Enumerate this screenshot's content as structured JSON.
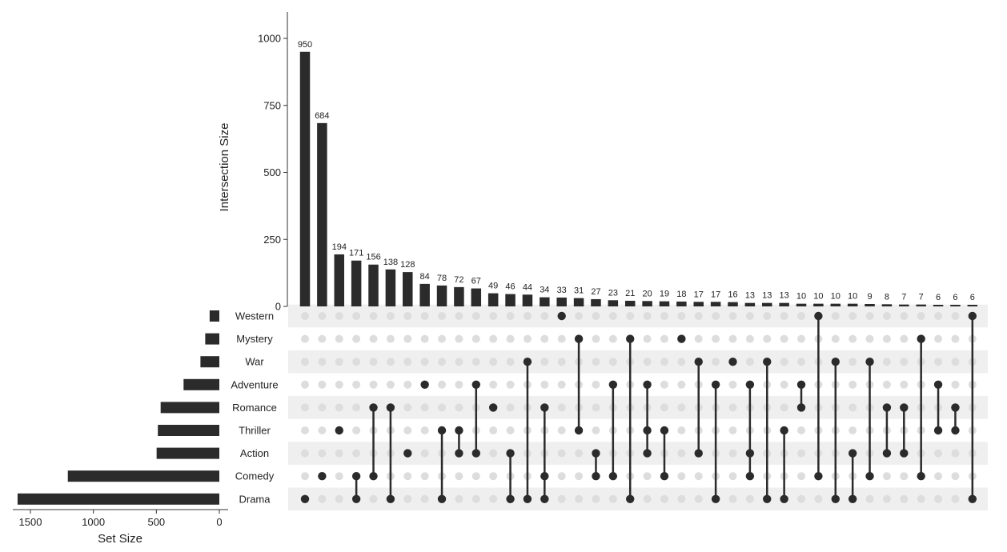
{
  "chart_data": {
    "type": "upset",
    "sets": [
      "Western",
      "Mystery",
      "War",
      "Adventure",
      "Romance",
      "Thriller",
      "Action",
      "Comedy",
      "Drama"
    ],
    "set_sizes": [
      77,
      112,
      150,
      284,
      466,
      488,
      498,
      1203,
      1602
    ],
    "set_size_axis": {
      "label": "Set Size",
      "ticks": [
        1500,
        1000,
        500,
        0
      ],
      "max": 1650,
      "reversed": true
    },
    "intersection_axis": {
      "label": "Intersection Size",
      "ticks": [
        0,
        250,
        500,
        750,
        1000
      ],
      "max": 1100
    },
    "intersections": [
      {
        "size": 950,
        "sets": [
          "Drama"
        ]
      },
      {
        "size": 684,
        "sets": [
          "Comedy"
        ]
      },
      {
        "size": 194,
        "sets": [
          "Thriller"
        ]
      },
      {
        "size": 171,
        "sets": [
          "Comedy",
          "Drama"
        ]
      },
      {
        "size": 156,
        "sets": [
          "Romance",
          "Comedy"
        ]
      },
      {
        "size": 138,
        "sets": [
          "Romance",
          "Drama"
        ]
      },
      {
        "size": 128,
        "sets": [
          "Action"
        ]
      },
      {
        "size": 84,
        "sets": [
          "Adventure"
        ]
      },
      {
        "size": 78,
        "sets": [
          "Thriller",
          "Drama"
        ]
      },
      {
        "size": 72,
        "sets": [
          "Thriller",
          "Action"
        ]
      },
      {
        "size": 67,
        "sets": [
          "Adventure",
          "Action"
        ]
      },
      {
        "size": 49,
        "sets": [
          "Romance"
        ]
      },
      {
        "size": 46,
        "sets": [
          "Action",
          "Drama"
        ]
      },
      {
        "size": 44,
        "sets": [
          "War",
          "Drama"
        ]
      },
      {
        "size": 34,
        "sets": [
          "Romance",
          "Comedy",
          "Drama"
        ]
      },
      {
        "size": 33,
        "sets": [
          "Western"
        ]
      },
      {
        "size": 31,
        "sets": [
          "Mystery",
          "Thriller"
        ]
      },
      {
        "size": 27,
        "sets": [
          "Action",
          "Comedy"
        ]
      },
      {
        "size": 23,
        "sets": [
          "Adventure",
          "Comedy"
        ]
      },
      {
        "size": 21,
        "sets": [
          "Mystery",
          "Drama"
        ]
      },
      {
        "size": 20,
        "sets": [
          "Adventure",
          "Thriller",
          "Action"
        ]
      },
      {
        "size": 19,
        "sets": [
          "Thriller",
          "Comedy"
        ]
      },
      {
        "size": 18,
        "sets": [
          "Mystery"
        ]
      },
      {
        "size": 17,
        "sets": [
          "War",
          "Action"
        ]
      },
      {
        "size": 17,
        "sets": [
          "Adventure",
          "Drama"
        ]
      },
      {
        "size": 16,
        "sets": [
          "War"
        ]
      },
      {
        "size": 13,
        "sets": [
          "Adventure",
          "Action",
          "Comedy"
        ]
      },
      {
        "size": 13,
        "sets": [
          "War",
          "Drama"
        ]
      },
      {
        "size": 13,
        "sets": [
          "Thriller",
          "Drama"
        ]
      },
      {
        "size": 10,
        "sets": [
          "Adventure",
          "Romance"
        ]
      },
      {
        "size": 10,
        "sets": [
          "Western",
          "Comedy"
        ]
      },
      {
        "size": 10,
        "sets": [
          "War",
          "Drama"
        ]
      },
      {
        "size": 10,
        "sets": [
          "Action",
          "Drama"
        ]
      },
      {
        "size": 9,
        "sets": [
          "War",
          "Comedy"
        ]
      },
      {
        "size": 8,
        "sets": [
          "Romance",
          "Action"
        ]
      },
      {
        "size": 7,
        "sets": [
          "Romance",
          "Action"
        ]
      },
      {
        "size": 7,
        "sets": [
          "Mystery",
          "Comedy"
        ]
      },
      {
        "size": 6,
        "sets": [
          "Adventure",
          "Thriller"
        ]
      },
      {
        "size": 6,
        "sets": [
          "Romance",
          "Thriller"
        ]
      },
      {
        "size": 6,
        "sets": [
          "Western",
          "Drama"
        ]
      }
    ],
    "colors": {
      "bar": "#2b2b2b",
      "dot_active": "#2b2b2b",
      "dot_inactive": "#dddddd",
      "stripe": "#efefef"
    },
    "grid": false
  }
}
